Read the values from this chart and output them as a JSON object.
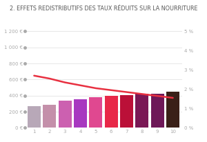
{
  "title": "2. EFFETS REDISTRIBUTIFS DES TAUX RÉDUITS SUR LA NOURRITURE",
  "categories": [
    1,
    2,
    3,
    4,
    5,
    6,
    7,
    8,
    9,
    10
  ],
  "bar_values": [
    270,
    290,
    335,
    355,
    380,
    400,
    405,
    420,
    425,
    445
  ],
  "bar_colors": [
    "#b8a8b8",
    "#c490aa",
    "#cc60b0",
    "#a838c0",
    "#e04890",
    "#e82848",
    "#bb1038",
    "#7a1855",
    "#6e1858",
    "#3a2018"
  ],
  "line_values": [
    2.7,
    2.55,
    2.35,
    2.2,
    2.05,
    1.95,
    1.85,
    1.75,
    1.65,
    1.55
  ],
  "line_color": "#e83040",
  "ylim_left": [
    0,
    1200
  ],
  "ylim_right": [
    0,
    5
  ],
  "yticks_left": [
    0,
    200,
    400,
    600,
    800,
    1000,
    1200
  ],
  "yticks_left_labels": [
    "0 €",
    "200 €",
    "400 €",
    "600 €",
    "800 €",
    "1 000 €",
    "1 200 €"
  ],
  "yticks_right": [
    0,
    1,
    2,
    3,
    4,
    5
  ],
  "yticks_right_labels": [
    "0 %",
    "1 %",
    "2 %",
    "3 %",
    "4 %",
    "5 %"
  ],
  "tick_color": "#aaaaaa",
  "dot_color": "#aaaaaa",
  "grid_color": "#dddddd",
  "background_color": "#ffffff",
  "title_fontsize": 5.8,
  "axis_fontsize": 5.0
}
